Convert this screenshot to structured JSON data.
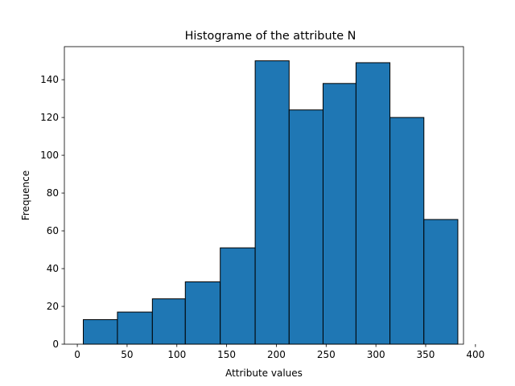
{
  "chart_data": {
    "type": "bar",
    "title": "Histograme of the attribute N",
    "xlabel": "Attribute values",
    "ylabel": "Frequence",
    "bin_edges": [
      6,
      40.3,
      75.4,
      108.5,
      143.6,
      178.7,
      212.8,
      246.9,
      280.0,
      314.1,
      348.2,
      382.3
    ],
    "values": [
      13,
      17,
      24,
      33,
      51,
      150,
      124,
      138,
      149,
      120,
      66
    ],
    "xlim": [
      -13,
      388
    ],
    "ylim": [
      0,
      157.5
    ],
    "xticks": [
      0,
      50,
      100,
      150,
      200,
      250,
      300,
      350,
      400
    ],
    "yticks": [
      0,
      20,
      40,
      60,
      80,
      100,
      120,
      140
    ],
    "grid": false,
    "bar_color": "#1f77b4",
    "edge_color": "#000000"
  }
}
